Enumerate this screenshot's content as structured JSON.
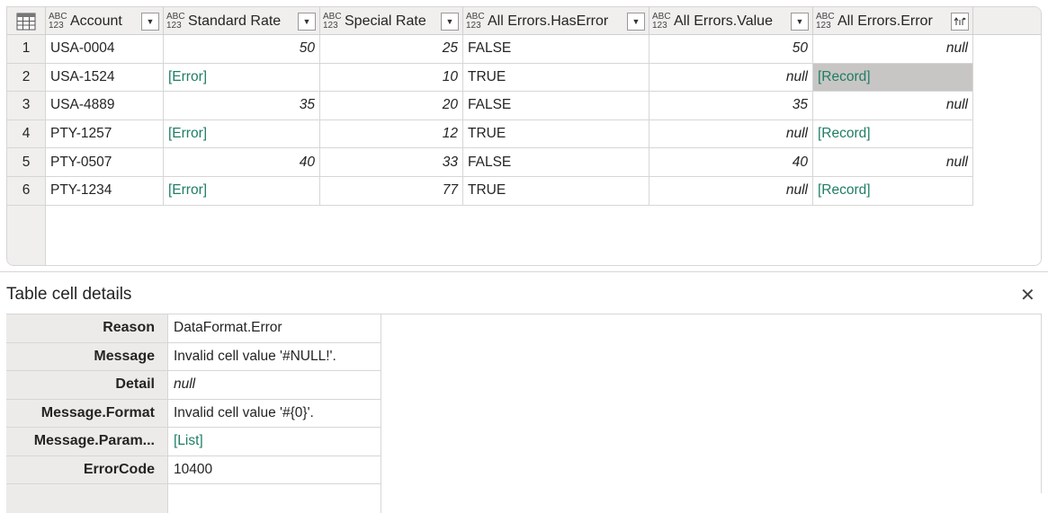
{
  "grid": {
    "columns": [
      {
        "name": "Account",
        "type_top": "ABC",
        "type_bottom": "123",
        "menu_icon": "dropdown-arrow"
      },
      {
        "name": "Standard Rate",
        "type_top": "ABC",
        "type_bottom": "123",
        "menu_icon": "dropdown-arrow"
      },
      {
        "name": "Special Rate",
        "type_top": "ABC",
        "type_bottom": "123",
        "menu_icon": "dropdown-arrow"
      },
      {
        "name": "All Errors.HasError",
        "type_top": "ABC",
        "type_bottom": "123",
        "menu_icon": "dropdown-arrow"
      },
      {
        "name": "All Errors.Value",
        "type_top": "ABC",
        "type_bottom": "123",
        "menu_icon": "dropdown-arrow"
      },
      {
        "name": "All Errors.Error",
        "type_top": "ABC",
        "type_bottom": "123",
        "menu_icon": "expand-columns"
      }
    ],
    "rows": [
      {
        "n": "1",
        "cells": [
          {
            "v": "USA-0004",
            "t": "text"
          },
          {
            "v": "50",
            "t": "num"
          },
          {
            "v": "25",
            "t": "num"
          },
          {
            "v": "FALSE",
            "t": "text"
          },
          {
            "v": "50",
            "t": "num"
          },
          {
            "v": "null",
            "t": "null"
          }
        ]
      },
      {
        "n": "2",
        "cells": [
          {
            "v": "USA-1524",
            "t": "text"
          },
          {
            "v": "[Error]",
            "t": "link"
          },
          {
            "v": "10",
            "t": "num"
          },
          {
            "v": "TRUE",
            "t": "text"
          },
          {
            "v": "null",
            "t": "null"
          },
          {
            "v": "[Record]",
            "t": "link",
            "selected": true
          }
        ]
      },
      {
        "n": "3",
        "cells": [
          {
            "v": "USA-4889",
            "t": "text"
          },
          {
            "v": "35",
            "t": "num"
          },
          {
            "v": "20",
            "t": "num"
          },
          {
            "v": "FALSE",
            "t": "text"
          },
          {
            "v": "35",
            "t": "num"
          },
          {
            "v": "null",
            "t": "null"
          }
        ]
      },
      {
        "n": "4",
        "cells": [
          {
            "v": "PTY-1257",
            "t": "text"
          },
          {
            "v": "[Error]",
            "t": "link"
          },
          {
            "v": "12",
            "t": "num"
          },
          {
            "v": "TRUE",
            "t": "text"
          },
          {
            "v": "null",
            "t": "null"
          },
          {
            "v": "[Record]",
            "t": "link"
          }
        ]
      },
      {
        "n": "5",
        "cells": [
          {
            "v": "PTY-0507",
            "t": "text"
          },
          {
            "v": "40",
            "t": "num"
          },
          {
            "v": "33",
            "t": "num"
          },
          {
            "v": "FALSE",
            "t": "text"
          },
          {
            "v": "40",
            "t": "num"
          },
          {
            "v": "null",
            "t": "null"
          }
        ]
      },
      {
        "n": "6",
        "cells": [
          {
            "v": "PTY-1234",
            "t": "text"
          },
          {
            "v": "[Error]",
            "t": "link"
          },
          {
            "v": "77",
            "t": "num"
          },
          {
            "v": "TRUE",
            "t": "text"
          },
          {
            "v": "null",
            "t": "null"
          },
          {
            "v": "[Record]",
            "t": "link"
          }
        ]
      }
    ]
  },
  "details": {
    "title": "Table cell details",
    "close_icon": "✕",
    "rows": [
      {
        "label": "Reason",
        "value": "DataFormat.Error",
        "t": "text"
      },
      {
        "label": "Message",
        "value": "Invalid cell value '#NULL!'.",
        "t": "text"
      },
      {
        "label": "Detail",
        "value": "null",
        "t": "nullv"
      },
      {
        "label": "Message.Format",
        "value": "Invalid cell value '#{0}'.",
        "t": "text"
      },
      {
        "label": "Message.Param...",
        "value": "[List]",
        "t": "link"
      },
      {
        "label": "ErrorCode",
        "value": "10400",
        "t": "text"
      }
    ]
  },
  "colors": {
    "link": "#1e7d65",
    "selected_cell": "#c8c6c4",
    "header_bg": "#f0efee"
  }
}
